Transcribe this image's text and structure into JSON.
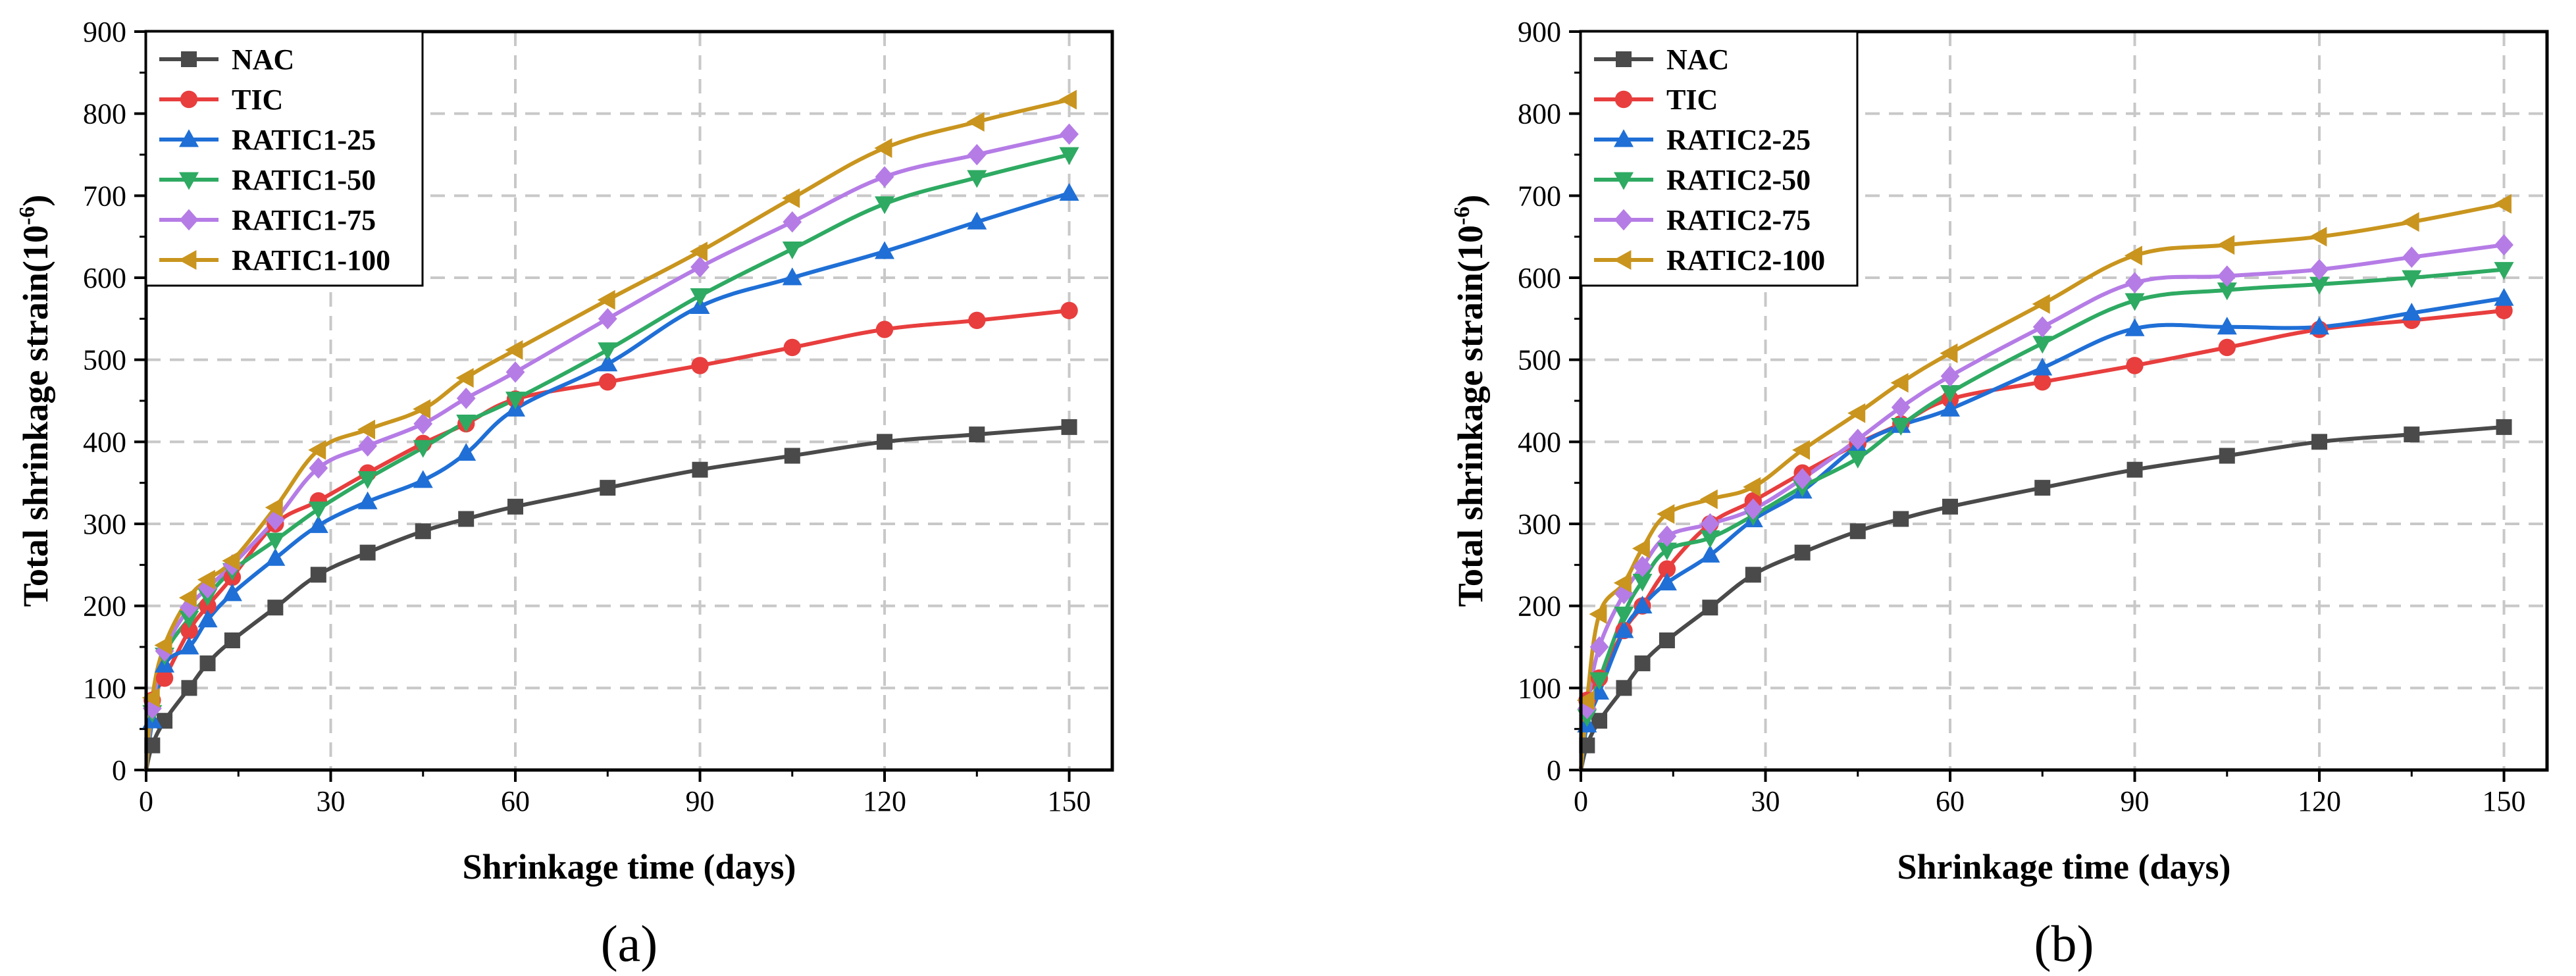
{
  "chart_data": [
    {
      "type": "line",
      "panel_label": "(a)",
      "xlabel": "Shrinkage time (days)",
      "ylabel": "Total shrinkage strain(10",
      "ylabel_sup": "-6",
      "ylabel_close": ")",
      "xlim": [
        0,
        157
      ],
      "ylim": [
        0,
        900
      ],
      "xticks": [
        0,
        30,
        60,
        90,
        120,
        150
      ],
      "yticks": [
        0,
        100,
        200,
        300,
        400,
        500,
        600,
        700,
        800,
        900
      ],
      "grid": true,
      "legend_position": "top-left",
      "series": [
        {
          "name": "NAC",
          "color": "#4a4a4a",
          "marker": "square",
          "x": [
            0,
            1,
            3,
            7,
            10,
            14,
            21,
            28,
            36,
            45,
            52,
            60,
            75,
            90,
            105,
            120,
            135,
            150
          ],
          "y": [
            0,
            30,
            60,
            100,
            130,
            158,
            198,
            238,
            265,
            291,
            306,
            321,
            344,
            366,
            383,
            400,
            409,
            418
          ]
        },
        {
          "name": "TIC",
          "color": "#e83e3e",
          "marker": "circle",
          "x": [
            0,
            1,
            3,
            7,
            10,
            14,
            21,
            28,
            36,
            45,
            52,
            60,
            75,
            90,
            105,
            120,
            135,
            150
          ],
          "y": [
            0,
            85,
            112,
            170,
            200,
            235,
            300,
            328,
            362,
            398,
            422,
            452,
            473,
            493,
            515,
            537,
            548,
            560
          ]
        },
        {
          "name": "RATIC1-25",
          "color": "#1f6fd6",
          "marker": "triangle-up",
          "x": [
            0,
            1,
            3,
            7,
            10,
            14,
            21,
            28,
            36,
            45,
            52,
            60,
            75,
            90,
            105,
            120,
            135,
            150
          ],
          "y": [
            0,
            60,
            128,
            150,
            183,
            215,
            258,
            298,
            327,
            353,
            386,
            440,
            495,
            565,
            600,
            632,
            668,
            703
          ]
        },
        {
          "name": "RATIC1-50",
          "color": "#2eaa62",
          "marker": "triangle-down",
          "x": [
            0,
            1,
            3,
            7,
            10,
            14,
            21,
            28,
            36,
            45,
            52,
            60,
            75,
            90,
            105,
            120,
            135,
            150
          ],
          "y": [
            0,
            70,
            140,
            185,
            212,
            243,
            280,
            318,
            355,
            393,
            424,
            452,
            512,
            578,
            635,
            690,
            722,
            750
          ]
        },
        {
          "name": "RATIC1-75",
          "color": "#b57ce6",
          "marker": "diamond",
          "x": [
            0,
            1,
            3,
            7,
            10,
            14,
            21,
            28,
            36,
            45,
            52,
            60,
            75,
            90,
            105,
            120,
            135,
            150
          ],
          "y": [
            0,
            75,
            145,
            198,
            222,
            250,
            305,
            368,
            395,
            422,
            453,
            485,
            550,
            613,
            668,
            723,
            750,
            775
          ]
        },
        {
          "name": "RATIC1-100",
          "color": "#c9951e",
          "marker": "triangle-left",
          "x": [
            0,
            1,
            3,
            7,
            10,
            14,
            21,
            28,
            36,
            45,
            52,
            60,
            75,
            90,
            105,
            120,
            135,
            150
          ],
          "y": [
            0,
            88,
            152,
            210,
            232,
            255,
            320,
            390,
            415,
            440,
            478,
            512,
            573,
            632,
            697,
            758,
            790,
            817
          ]
        }
      ]
    },
    {
      "type": "line",
      "panel_label": "(b)",
      "xlabel": "Shrinkage time (days)",
      "ylabel": "Total shrinkage strain(10",
      "ylabel_sup": "-6",
      "ylabel_close": ")",
      "xlim": [
        0,
        157
      ],
      "ylim": [
        0,
        900
      ],
      "xticks": [
        0,
        30,
        60,
        90,
        120,
        150
      ],
      "yticks": [
        0,
        100,
        200,
        300,
        400,
        500,
        600,
        700,
        800,
        900
      ],
      "grid": true,
      "legend_position": "top-left",
      "series": [
        {
          "name": "NAC",
          "color": "#4a4a4a",
          "marker": "square",
          "x": [
            0,
            1,
            3,
            7,
            10,
            14,
            21,
            28,
            36,
            45,
            52,
            60,
            75,
            90,
            105,
            120,
            135,
            150
          ],
          "y": [
            0,
            30,
            60,
            100,
            130,
            158,
            198,
            238,
            265,
            291,
            306,
            321,
            344,
            366,
            383,
            400,
            409,
            418
          ]
        },
        {
          "name": "TIC",
          "color": "#e83e3e",
          "marker": "circle",
          "x": [
            0,
            1,
            3,
            7,
            10,
            14,
            21,
            28,
            36,
            45,
            52,
            60,
            75,
            90,
            105,
            120,
            135,
            150
          ],
          "y": [
            0,
            85,
            112,
            170,
            200,
            245,
            300,
            328,
            362,
            398,
            422,
            452,
            473,
            493,
            515,
            537,
            548,
            560
          ]
        },
        {
          "name": "RATIC2-25",
          "color": "#1f6fd6",
          "marker": "triangle-up",
          "x": [
            0,
            1,
            3,
            7,
            10,
            14,
            21,
            28,
            36,
            45,
            52,
            60,
            75,
            90,
            105,
            120,
            135,
            150
          ],
          "y": [
            0,
            55,
            95,
            170,
            200,
            228,
            262,
            305,
            340,
            395,
            420,
            440,
            490,
            538,
            540,
            540,
            557,
            575
          ]
        },
        {
          "name": "RATIC2-50",
          "color": "#2eaa62",
          "marker": "triangle-down",
          "x": [
            0,
            1,
            3,
            7,
            10,
            14,
            21,
            28,
            36,
            45,
            52,
            60,
            75,
            90,
            105,
            120,
            135,
            150
          ],
          "y": [
            0,
            65,
            110,
            190,
            230,
            268,
            283,
            310,
            345,
            380,
            420,
            460,
            520,
            572,
            585,
            592,
            600,
            610
          ]
        },
        {
          "name": "RATIC2-75",
          "color": "#b57ce6",
          "marker": "diamond",
          "x": [
            0,
            1,
            3,
            7,
            10,
            14,
            21,
            28,
            36,
            45,
            52,
            60,
            75,
            90,
            105,
            120,
            135,
            150
          ],
          "y": [
            0,
            75,
            150,
            215,
            248,
            285,
            300,
            318,
            355,
            403,
            442,
            480,
            540,
            594,
            602,
            610,
            625,
            640
          ]
        },
        {
          "name": "RATIC2-100",
          "color": "#c9951e",
          "marker": "triangle-left",
          "x": [
            0,
            1,
            3,
            7,
            10,
            14,
            21,
            28,
            36,
            45,
            52,
            60,
            75,
            90,
            105,
            120,
            135,
            150
          ],
          "y": [
            0,
            85,
            190,
            228,
            270,
            312,
            330,
            345,
            390,
            435,
            472,
            508,
            568,
            627,
            640,
            650,
            668,
            690
          ]
        }
      ]
    }
  ]
}
